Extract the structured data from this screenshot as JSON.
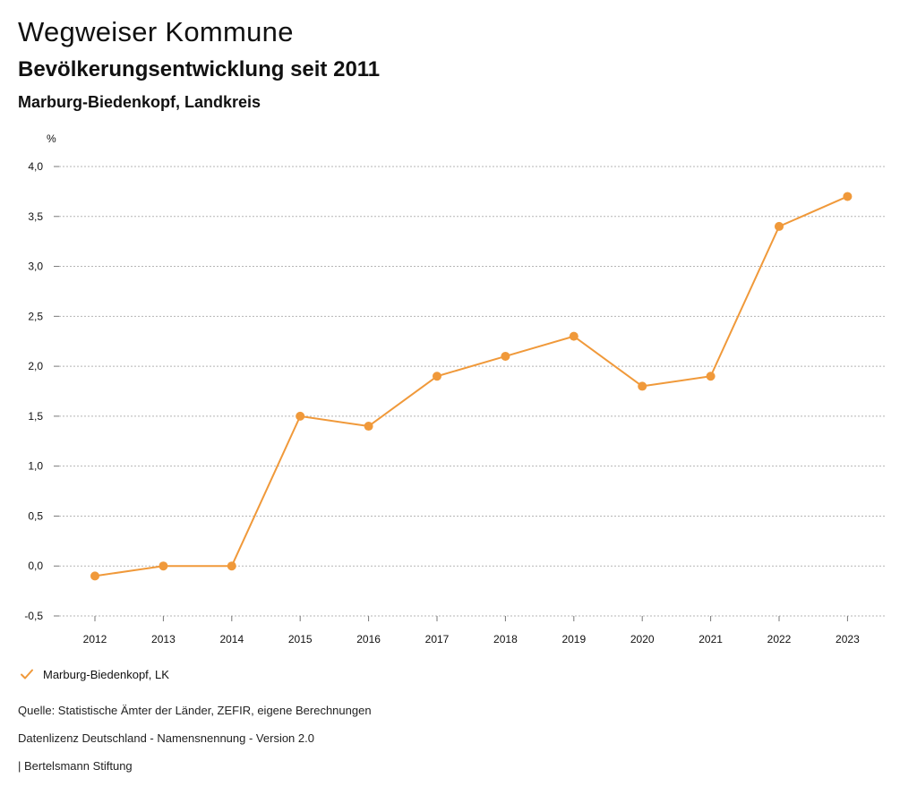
{
  "header": {
    "title": "Wegweiser Kommune",
    "subtitle": "Bevölkerungsentwicklung seit 2011",
    "region": "Marburg-Biedenkopf, Landkreis"
  },
  "chart_data": {
    "type": "line",
    "ylabel": "%",
    "ylim": [
      -0.5,
      4.0
    ],
    "yticks": [
      "-0,5",
      "0,0",
      "0,5",
      "1,0",
      "1,5",
      "2,0",
      "2,5",
      "3,0",
      "3,5",
      "4,0"
    ],
    "ytick_values": [
      -0.5,
      0.0,
      0.5,
      1.0,
      1.5,
      2.0,
      2.5,
      3.0,
      3.5,
      4.0
    ],
    "categories": [
      "2012",
      "2013",
      "2014",
      "2015",
      "2016",
      "2017",
      "2018",
      "2019",
      "2020",
      "2021",
      "2022",
      "2023"
    ],
    "grid": true,
    "legend_position": "bottom-left",
    "series": [
      {
        "name": "Marburg-Biedenkopf, LK",
        "color": "#F0993A",
        "values": [
          -0.1,
          0.0,
          0.0,
          1.5,
          1.4,
          1.9,
          2.1,
          2.3,
          1.8,
          1.9,
          3.4,
          3.7
        ]
      }
    ]
  },
  "footer": {
    "source": "Quelle: Statistische Ämter der Länder, ZEFIR, eigene Berechnungen",
    "license": "Datenlizenz Deutschland - Namensnennung - Version 2.0",
    "publisher": "| Bertelsmann Stiftung"
  }
}
